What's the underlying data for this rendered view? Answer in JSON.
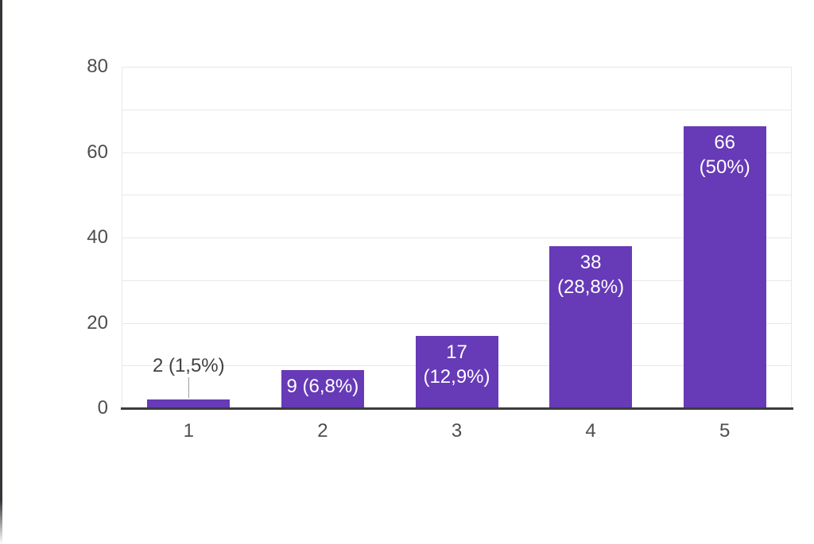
{
  "window": {
    "background": "#ffffff",
    "edge_line_color": "#35353a"
  },
  "chart_data": {
    "type": "bar",
    "title": "",
    "xlabel": "",
    "ylabel": "",
    "categories": [
      "1",
      "2",
      "3",
      "4",
      "5"
    ],
    "values": [
      2,
      9,
      17,
      38,
      66
    ],
    "bar_labels": [
      {
        "lines": [
          "2 (1,5%)"
        ],
        "placement": "outside"
      },
      {
        "lines": [
          "9 (6,8%)"
        ],
        "placement": "inside"
      },
      {
        "lines": [
          "17",
          "(12,9%)"
        ],
        "placement": "inside"
      },
      {
        "lines": [
          "38",
          "(28,8%)"
        ],
        "placement": "inside"
      },
      {
        "lines": [
          "66",
          "(50%)"
        ],
        "placement": "inside"
      }
    ],
    "ylim": [
      0,
      80
    ],
    "y_ticks": [
      0,
      20,
      40,
      60,
      80
    ],
    "gridline_values": [
      10,
      20,
      30,
      40,
      50,
      60,
      70,
      80
    ],
    "grid": true,
    "legend_position": "none",
    "colors": {
      "bar": "#673ab7",
      "bar_label_text": "#ffffff",
      "outside_label_text": "#424242",
      "axis_text": "#4e4e4e",
      "axis_line": "#3c3c3c",
      "gridline": "#e8e8e8",
      "plot_border": "#e8e8e8",
      "callout_line": "#9e9e9e"
    }
  }
}
